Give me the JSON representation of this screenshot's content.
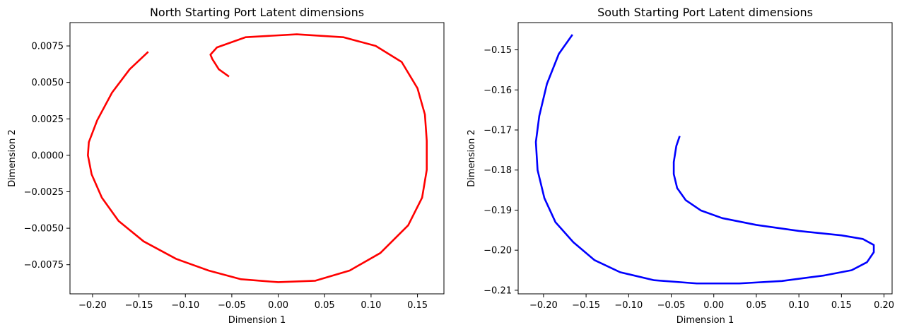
{
  "chart_data": [
    {
      "type": "line",
      "title": "North Starting Port Latent dimensions",
      "xlabel": "Dimension 1",
      "ylabel": "Dimension 2",
      "xlim": [
        -0.2243,
        0.1785
      ],
      "ylim": [
        -0.0095,
        0.0091
      ],
      "xticks": [
        -0.2,
        -0.15,
        -0.1,
        -0.05,
        0.0,
        0.05,
        0.1,
        0.15
      ],
      "xtick_labels": [
        "−0.20",
        "−0.15",
        "−0.10",
        "−0.05",
        "0.00",
        "0.05",
        "0.10",
        "0.15"
      ],
      "yticks": [
        -0.0075,
        -0.005,
        -0.0025,
        0.0,
        0.0025,
        0.005,
        0.0075
      ],
      "ytick_labels": [
        "−0.0075",
        "−0.0050",
        "−0.0025",
        "0.0000",
        "0.0025",
        "0.0050",
        "0.0075"
      ],
      "grid": false,
      "series": [
        {
          "color": "#ff0000",
          "points": [
            [
              -0.14,
              0.0071
            ],
            [
              -0.16,
              0.0059
            ],
            [
              -0.179,
              0.0043
            ],
            [
              -0.195,
              0.0024
            ],
            [
              -0.204,
              0.0009
            ],
            [
              -0.205,
              0.0
            ],
            [
              -0.201,
              -0.0013
            ],
            [
              -0.19,
              -0.0029
            ],
            [
              -0.172,
              -0.0045
            ],
            [
              -0.145,
              -0.0059
            ],
            [
              -0.11,
              -0.0071
            ],
            [
              -0.075,
              -0.0079
            ],
            [
              -0.04,
              -0.0085
            ],
            [
              0.0,
              -0.0087
            ],
            [
              0.04,
              -0.0086
            ],
            [
              0.077,
              -0.0079
            ],
            [
              0.11,
              -0.0067
            ],
            [
              0.14,
              -0.0048
            ],
            [
              0.155,
              -0.0029
            ],
            [
              0.16,
              -0.001
            ],
            [
              0.16,
              0.001
            ],
            [
              0.158,
              0.0028
            ],
            [
              0.15,
              0.0046
            ],
            [
              0.133,
              0.0064
            ],
            [
              0.105,
              0.0075
            ],
            [
              0.07,
              0.0081
            ],
            [
              0.02,
              0.0083
            ],
            [
              -0.035,
              0.0081
            ],
            [
              -0.066,
              0.0074
            ],
            [
              -0.073,
              0.0069
            ],
            [
              -0.071,
              0.0066
            ],
            [
              -0.064,
              0.0059
            ],
            [
              -0.053,
              0.0054
            ]
          ]
        }
      ]
    },
    {
      "type": "line",
      "title": "South Starting Port Latent dimensions",
      "xlabel": "Dimension 1",
      "ylabel": "Dimension 2",
      "xlim": [
        -0.2298,
        0.2095
      ],
      "ylim": [
        -0.2109,
        -0.1432
      ],
      "xticks": [
        -0.2,
        -0.15,
        -0.1,
        -0.05,
        0.0,
        0.05,
        0.1,
        0.15,
        0.2
      ],
      "xtick_labels": [
        "−0.20",
        "−0.15",
        "−0.10",
        "−0.05",
        "0.00",
        "0.05",
        "0.10",
        "0.15",
        "0.20"
      ],
      "yticks": [
        -0.21,
        -0.2,
        -0.19,
        -0.18,
        -0.17,
        -0.16,
        -0.15
      ],
      "ytick_labels": [
        "−0.21",
        "−0.20",
        "−0.19",
        "−0.18",
        "−0.17",
        "−0.16",
        "−0.15"
      ],
      "grid": false,
      "series": [
        {
          "color": "#0000ff",
          "points": [
            [
              -0.166,
              -0.1462
            ],
            [
              -0.182,
              -0.151
            ],
            [
              -0.196,
              -0.1585
            ],
            [
              -0.205,
              -0.1665
            ],
            [
              -0.209,
              -0.173
            ],
            [
              -0.207,
              -0.18
            ],
            [
              -0.199,
              -0.187
            ],
            [
              -0.186,
              -0.193
            ],
            [
              -0.165,
              -0.198
            ],
            [
              -0.14,
              -0.2025
            ],
            [
              -0.11,
              -0.2055
            ],
            [
              -0.07,
              -0.2075
            ],
            [
              -0.02,
              -0.2083
            ],
            [
              0.03,
              -0.2083
            ],
            [
              0.08,
              -0.2077
            ],
            [
              0.13,
              -0.2063
            ],
            [
              0.162,
              -0.205
            ],
            [
              0.18,
              -0.203
            ],
            [
              0.188,
              -0.2005
            ],
            [
              0.188,
              -0.1987
            ],
            [
              0.175,
              -0.1972
            ],
            [
              0.15,
              -0.1963
            ],
            [
              0.1,
              -0.1952
            ],
            [
              0.05,
              -0.1937
            ],
            [
              0.01,
              -0.192
            ],
            [
              -0.015,
              -0.1901
            ],
            [
              -0.033,
              -0.1875
            ],
            [
              -0.043,
              -0.1845
            ],
            [
              -0.047,
              -0.181
            ],
            [
              -0.047,
              -0.178
            ],
            [
              -0.044,
              -0.174
            ],
            [
              -0.04,
              -0.1715
            ]
          ]
        }
      ]
    }
  ]
}
